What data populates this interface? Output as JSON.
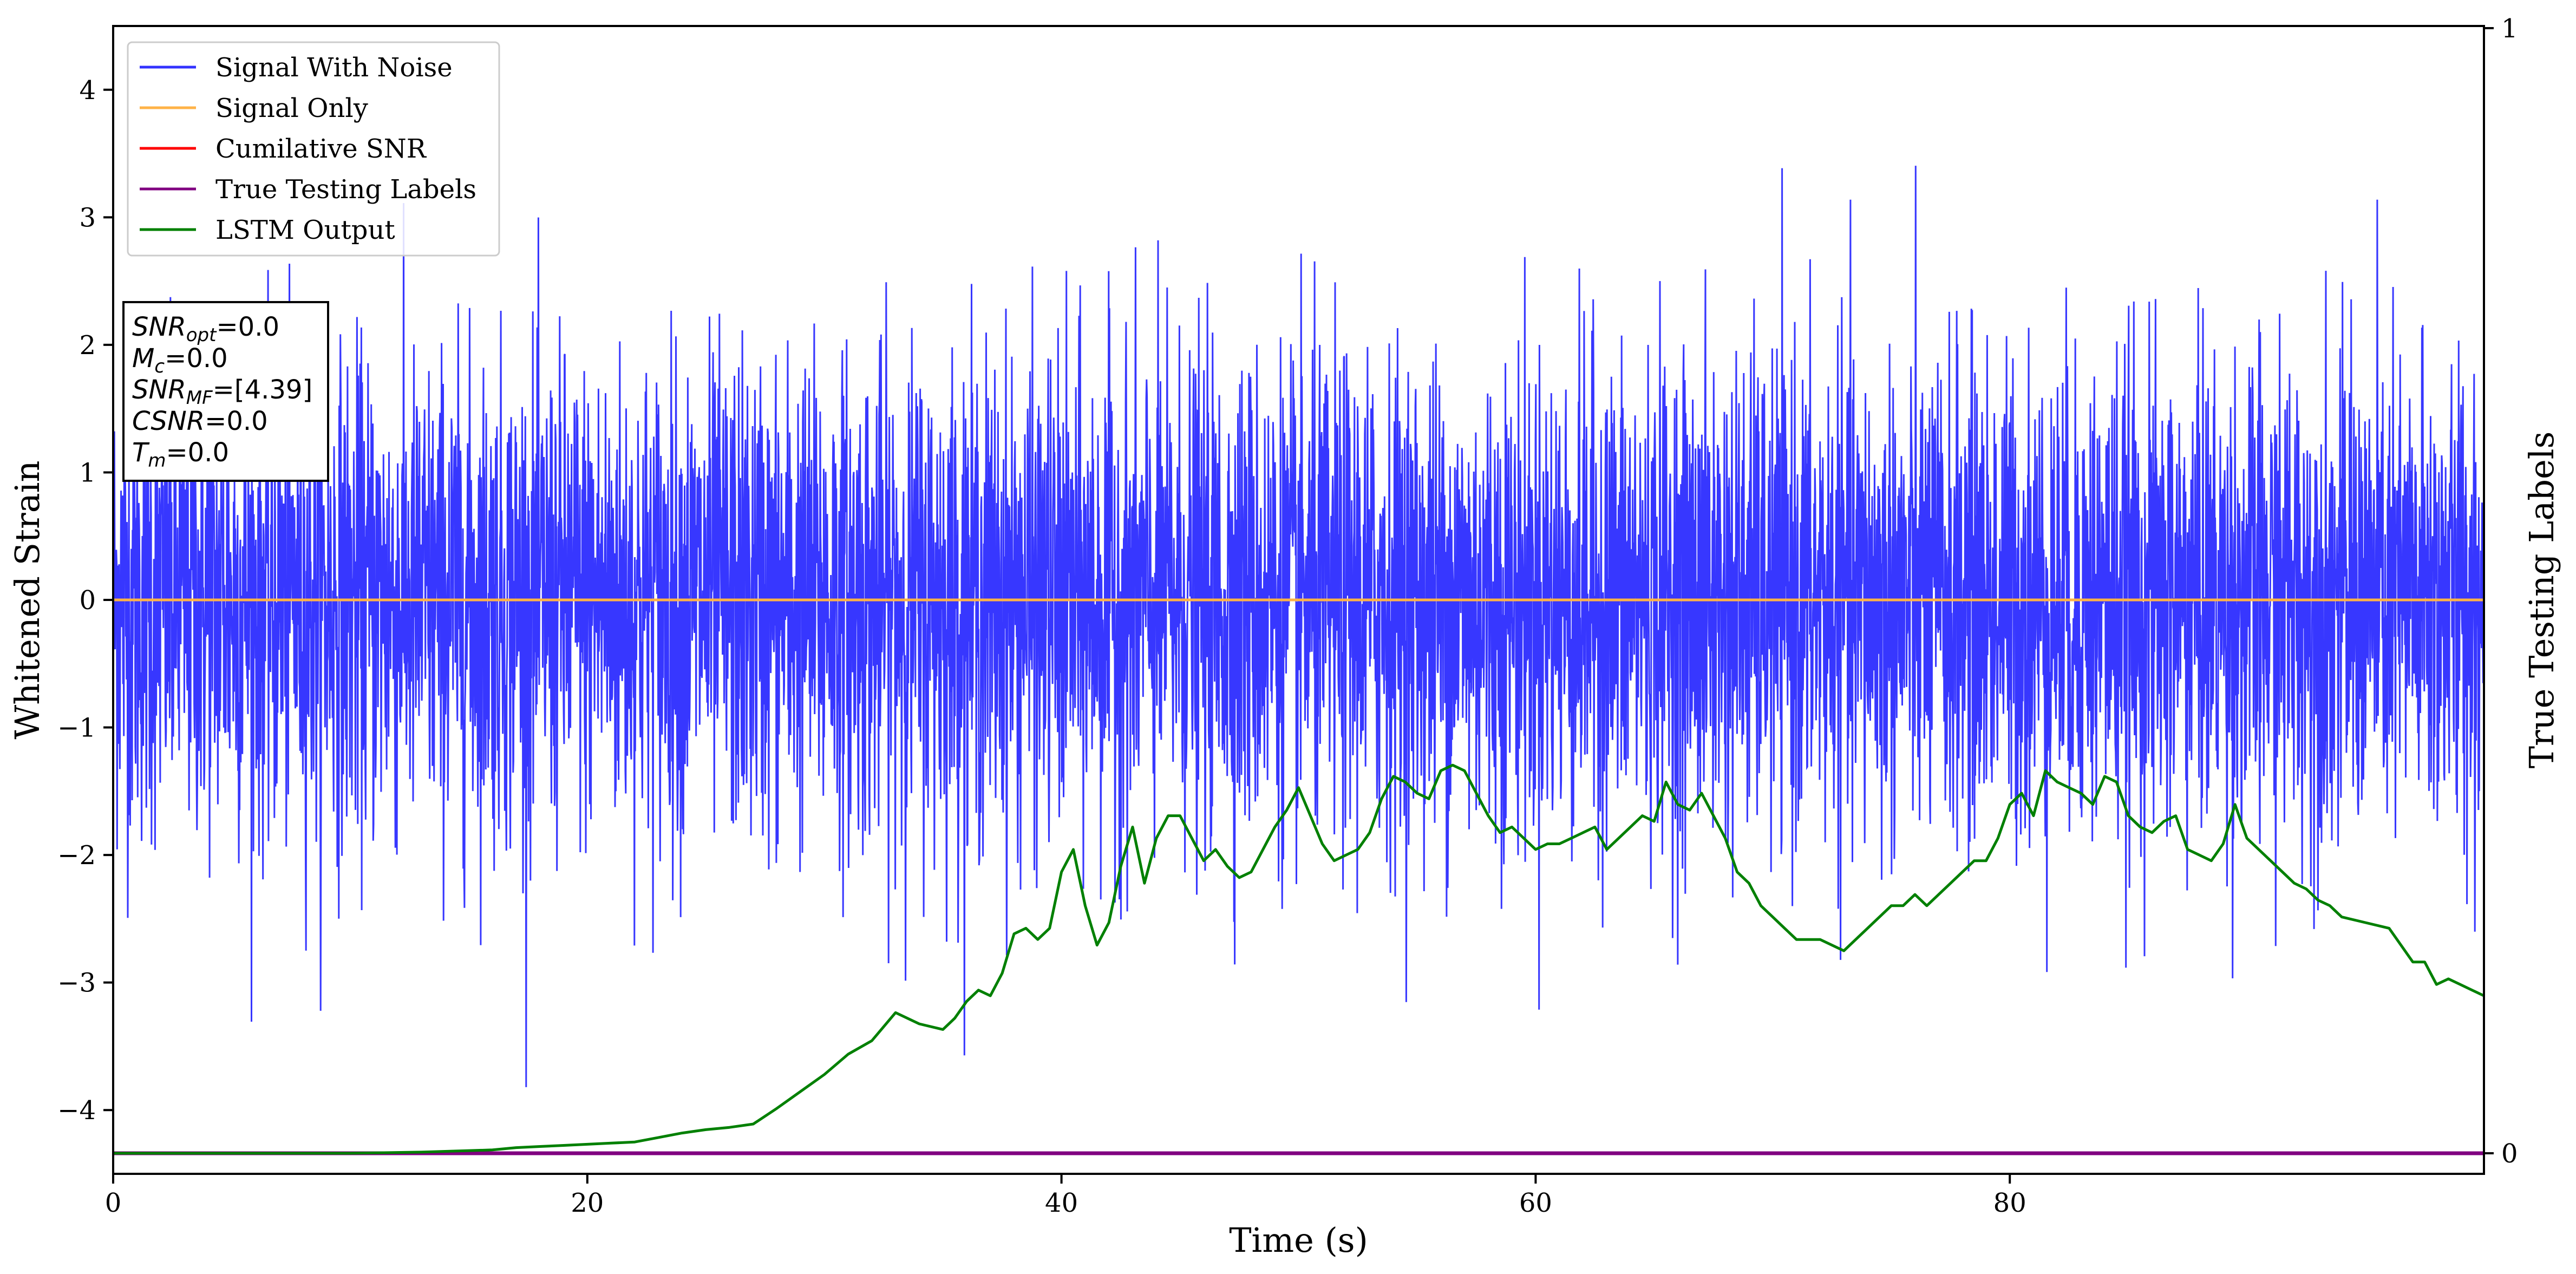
{
  "chart_data": {
    "type": "line",
    "xlabel": "Time (s)",
    "ylabel": "Whitened Strain",
    "ylabel_right": "True Testing Labels",
    "xlim": [
      0,
      100
    ],
    "ylim": [
      -4.5,
      4.5
    ],
    "ylim_right": [
      0,
      1
    ],
    "x_ticks": [
      0,
      20,
      40,
      60,
      80
    ],
    "y_ticks": [
      -4,
      -3,
      -2,
      -1,
      0,
      1,
      2,
      3,
      4
    ],
    "x_tick_labels": [
      "0",
      "20",
      "40",
      "60",
      "80"
    ],
    "y_tick_labels": [
      "−4",
      "−3",
      "−2",
      "−1",
      "0",
      "1",
      "2",
      "3",
      "4"
    ],
    "y_right_ticks": [
      0,
      1
    ],
    "y_right_tick_labels": [
      "0",
      "1"
    ],
    "grid": false,
    "legend_position": "top-left",
    "legend": [
      "Signal With Noise",
      "Signal Only",
      "Cumilative SNR",
      "True Testing Labels",
      "LSTM Output"
    ],
    "annotation": {
      "position": "upper-left",
      "lines": [
        {
          "sym": "SNR",
          "sub": "opt",
          "val": "=0.0"
        },
        {
          "sym": "M",
          "sub": "c",
          "val": "=0.0"
        },
        {
          "sym": "SNR",
          "sub": "MF",
          "val": "=[4.39]"
        },
        {
          "sym": "CSNR",
          "sub": "",
          "val": "=0.0"
        },
        {
          "sym": "T",
          "sub": "m",
          "val": "=0.0"
        }
      ]
    },
    "series": [
      {
        "name": "Signal With Noise",
        "color": "#3333ff",
        "axis": "left",
        "description_type": "noise",
        "envelope": {
          "max": 4.12,
          "min": -4.07,
          "typical_abs": 1.5
        }
      },
      {
        "name": "Signal Only",
        "color": "#ffb347",
        "axis": "left",
        "x": [
          0,
          100
        ],
        "y": [
          0,
          0
        ]
      },
      {
        "name": "Cumilative SNR",
        "color": "#ff0000",
        "axis": "right",
        "x": [
          0,
          100
        ],
        "y": [
          0,
          0
        ]
      },
      {
        "name": "True Testing Labels",
        "color": "#800080",
        "axis": "right",
        "x": [
          0,
          100
        ],
        "y": [
          0,
          0
        ]
      },
      {
        "name": "LSTM Output",
        "color": "#008000",
        "axis": "right",
        "x": [
          0,
          10,
          13,
          16,
          17,
          18,
          19,
          20,
          21,
          22,
          23,
          24,
          25,
          26,
          27,
          28,
          29,
          30,
          31,
          32,
          33,
          34,
          35,
          35.5,
          36,
          36.5,
          37,
          37.5,
          38,
          38.5,
          39,
          39.5,
          40,
          40.5,
          41,
          41.5,
          42,
          42.5,
          43,
          43.5,
          44,
          44.5,
          45,
          45.5,
          46,
          46.5,
          47,
          47.5,
          48,
          48.5,
          49,
          49.5,
          50,
          50.5,
          51,
          51.5,
          52,
          52.5,
          53,
          53.5,
          54,
          54.5,
          55,
          55.5,
          56,
          56.5,
          57,
          57.5,
          58,
          58.5,
          59,
          59.5,
          60,
          60.5,
          61,
          61.5,
          62,
          62.5,
          63,
          63.5,
          64,
          64.5,
          65,
          65.5,
          66,
          66.5,
          67,
          67.5,
          68,
          68.5,
          69,
          69.5,
          70,
          70.5,
          71,
          72,
          73,
          74,
          75,
          75.5,
          76,
          76.5,
          77,
          77.5,
          78,
          78.5,
          79,
          79.5,
          80,
          80.5,
          81,
          81.5,
          82,
          82.5,
          83,
          83.5,
          84,
          84.5,
          85,
          85.5,
          86,
          86.5,
          87,
          87.5,
          88,
          88.5,
          89,
          89.5,
          90,
          90.5,
          91,
          91.5,
          92,
          92.5,
          93,
          93.5,
          94,
          95,
          96,
          96.5,
          97,
          97.5,
          98,
          98.5,
          99,
          99.5,
          100
        ],
        "y": [
          0,
          0,
          0.001,
          0.003,
          0.005,
          0.006,
          0.007,
          0.008,
          0.009,
          0.01,
          0.014,
          0.018,
          0.021,
          0.023,
          0.026,
          0.04,
          0.055,
          0.07,
          0.088,
          0.1,
          0.125,
          0.115,
          0.11,
          0.12,
          0.135,
          0.145,
          0.14,
          0.16,
          0.195,
          0.2,
          0.19,
          0.2,
          0.25,
          0.27,
          0.22,
          0.185,
          0.205,
          0.255,
          0.29,
          0.24,
          0.28,
          0.3,
          0.3,
          0.28,
          0.26,
          0.27,
          0.255,
          0.245,
          0.25,
          0.27,
          0.29,
          0.305,
          0.325,
          0.3,
          0.275,
          0.26,
          0.265,
          0.27,
          0.285,
          0.315,
          0.335,
          0.33,
          0.32,
          0.315,
          0.34,
          0.345,
          0.34,
          0.32,
          0.3,
          0.285,
          0.29,
          0.28,
          0.27,
          0.275,
          0.275,
          0.28,
          0.285,
          0.29,
          0.27,
          0.28,
          0.29,
          0.3,
          0.295,
          0.33,
          0.31,
          0.305,
          0.32,
          0.3,
          0.28,
          0.25,
          0.24,
          0.22,
          0.21,
          0.2,
          0.19,
          0.19,
          0.18,
          0.2,
          0.22,
          0.22,
          0.23,
          0.22,
          0.23,
          0.24,
          0.25,
          0.26,
          0.26,
          0.28,
          0.31,
          0.32,
          0.3,
          0.34,
          0.33,
          0.325,
          0.32,
          0.31,
          0.335,
          0.33,
          0.3,
          0.29,
          0.285,
          0.295,
          0.3,
          0.27,
          0.265,
          0.26,
          0.275,
          0.31,
          0.28,
          0.27,
          0.26,
          0.25,
          0.24,
          0.235,
          0.225,
          0.22,
          0.21,
          0.205,
          0.2,
          0.185,
          0.17,
          0.17,
          0.15,
          0.155,
          0.15,
          0.145,
          0.14
        ]
      }
    ]
  }
}
